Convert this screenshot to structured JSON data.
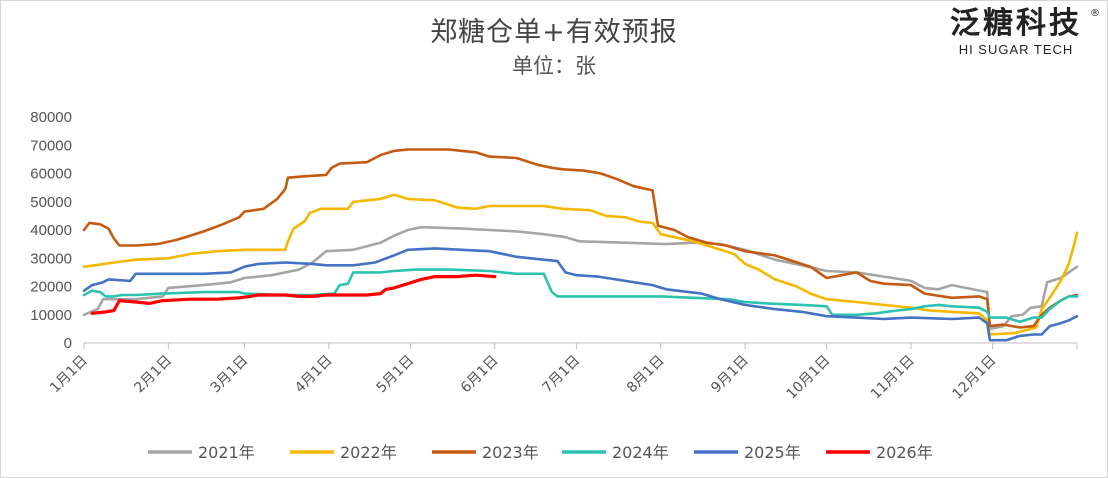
{
  "chart_data": {
    "type": "line",
    "title": "郑糖仓单+有效预报",
    "subtitle": "单位：张",
    "ylim": [
      0,
      80000
    ],
    "yticks": [
      0,
      10000,
      20000,
      30000,
      40000,
      50000,
      60000,
      70000,
      80000
    ],
    "xlim": [
      1,
      366
    ],
    "xticks": [
      {
        "label": "1月1日",
        "day": 1
      },
      {
        "label": "2月1日",
        "day": 32
      },
      {
        "label": "3月1日",
        "day": 60
      },
      {
        "label": "4月1日",
        "day": 91
      },
      {
        "label": "5月1日",
        "day": 121
      },
      {
        "label": "6月1日",
        "day": 152
      },
      {
        "label": "7月1日",
        "day": 182
      },
      {
        "label": "8月1日",
        "day": 213
      },
      {
        "label": "9月1日",
        "day": 244
      },
      {
        "label": "10月1日",
        "day": 274
      },
      {
        "label": "11月1日",
        "day": 305
      },
      {
        "label": "12月1日",
        "day": 335
      }
    ],
    "legend_position": "bottom",
    "series": [
      {
        "name": "2021年",
        "color": "#A5A5A5",
        "points": [
          [
            1,
            10000
          ],
          [
            6,
            12000
          ],
          [
            8,
            15500
          ],
          [
            20,
            15500
          ],
          [
            30,
            16500
          ],
          [
            32,
            19500
          ],
          [
            45,
            20500
          ],
          [
            55,
            21500
          ],
          [
            60,
            23000
          ],
          [
            70,
            24000
          ],
          [
            80,
            26000
          ],
          [
            85,
            28500
          ],
          [
            90,
            32500
          ],
          [
            100,
            33000
          ],
          [
            110,
            35500
          ],
          [
            115,
            38000
          ],
          [
            120,
            40000
          ],
          [
            125,
            41000
          ],
          [
            140,
            40500
          ],
          [
            150,
            40000
          ],
          [
            160,
            39500
          ],
          [
            170,
            38500
          ],
          [
            178,
            37500
          ],
          [
            183,
            36000
          ],
          [
            200,
            35500
          ],
          [
            215,
            35000
          ],
          [
            225,
            35500
          ],
          [
            235,
            35000
          ],
          [
            244,
            33000
          ],
          [
            255,
            29500
          ],
          [
            265,
            27500
          ],
          [
            274,
            25500
          ],
          [
            285,
            25000
          ],
          [
            295,
            23500
          ],
          [
            305,
            22000
          ],
          [
            310,
            19500
          ],
          [
            315,
            19000
          ],
          [
            320,
            20500
          ],
          [
            325,
            19500
          ],
          [
            333,
            18000
          ],
          [
            334,
            5000
          ],
          [
            339,
            6000
          ],
          [
            342,
            9500
          ],
          [
            346,
            10000
          ],
          [
            349,
            12500
          ],
          [
            353,
            13000
          ],
          [
            355,
            21500
          ],
          [
            360,
            23000
          ],
          [
            366,
            27000
          ]
        ]
      },
      {
        "name": "2022年",
        "color": "#F5B800",
        "points": [
          [
            1,
            27000
          ],
          [
            5,
            27500
          ],
          [
            12,
            28500
          ],
          [
            20,
            29500
          ],
          [
            32,
            30000
          ],
          [
            40,
            31500
          ],
          [
            50,
            32500
          ],
          [
            60,
            33000
          ],
          [
            75,
            33000
          ],
          [
            76,
            36000
          ],
          [
            78,
            40500
          ],
          [
            82,
            43000
          ],
          [
            84,
            46000
          ],
          [
            88,
            47500
          ],
          [
            98,
            47500
          ],
          [
            100,
            50000
          ],
          [
            110,
            51000
          ],
          [
            115,
            52500
          ],
          [
            120,
            51000
          ],
          [
            130,
            50500
          ],
          [
            138,
            48000
          ],
          [
            145,
            47500
          ],
          [
            150,
            48500
          ],
          [
            170,
            48500
          ],
          [
            177,
            47500
          ],
          [
            187,
            47000
          ],
          [
            193,
            45000
          ],
          [
            200,
            44500
          ],
          [
            205,
            43000
          ],
          [
            210,
            42500
          ],
          [
            213,
            38500
          ],
          [
            225,
            36000
          ],
          [
            235,
            33000
          ],
          [
            240,
            31500
          ],
          [
            244,
            28000
          ],
          [
            249,
            26000
          ],
          [
            255,
            22500
          ],
          [
            263,
            20000
          ],
          [
            268,
            17500
          ],
          [
            274,
            15500
          ],
          [
            285,
            14500
          ],
          [
            300,
            13000
          ],
          [
            305,
            12500
          ],
          [
            312,
            11500
          ],
          [
            320,
            11000
          ],
          [
            330,
            10500
          ],
          [
            333,
            8000
          ],
          [
            334,
            3000
          ],
          [
            343,
            3500
          ],
          [
            347,
            4500
          ],
          [
            351,
            5500
          ],
          [
            353,
            12000
          ],
          [
            356,
            16000
          ],
          [
            360,
            22000
          ],
          [
            363,
            28000
          ],
          [
            365,
            35000
          ],
          [
            366,
            39000
          ]
        ]
      },
      {
        "name": "2023年",
        "color": "#C55A11",
        "points": [
          [
            1,
            40000
          ],
          [
            3,
            42500
          ],
          [
            7,
            42000
          ],
          [
            10,
            40500
          ],
          [
            12,
            37000
          ],
          [
            14,
            34500
          ],
          [
            20,
            34500
          ],
          [
            28,
            35000
          ],
          [
            35,
            36500
          ],
          [
            40,
            38000
          ],
          [
            45,
            39500
          ],
          [
            52,
            42000
          ],
          [
            58,
            44500
          ],
          [
            60,
            46500
          ],
          [
            67,
            47500
          ],
          [
            72,
            51000
          ],
          [
            75,
            54500
          ],
          [
            76,
            58500
          ],
          [
            82,
            59000
          ],
          [
            90,
            59500
          ],
          [
            92,
            62000
          ],
          [
            95,
            63500
          ],
          [
            105,
            64000
          ],
          [
            110,
            66500
          ],
          [
            115,
            68000
          ],
          [
            120,
            68500
          ],
          [
            135,
            68500
          ],
          [
            140,
            68000
          ],
          [
            145,
            67500
          ],
          [
            150,
            66000
          ],
          [
            160,
            65500
          ],
          [
            168,
            63000
          ],
          [
            173,
            62000
          ],
          [
            177,
            61500
          ],
          [
            185,
            61000
          ],
          [
            191,
            60000
          ],
          [
            197,
            58000
          ],
          [
            203,
            55500
          ],
          [
            210,
            54000
          ],
          [
            212,
            41500
          ],
          [
            218,
            40000
          ],
          [
            223,
            37500
          ],
          [
            230,
            35500
          ],
          [
            237,
            34500
          ],
          [
            244,
            32500
          ],
          [
            255,
            31000
          ],
          [
            260,
            29500
          ],
          [
            268,
            27000
          ],
          [
            274,
            23000
          ],
          [
            285,
            25000
          ],
          [
            290,
            22000
          ],
          [
            295,
            21000
          ],
          [
            305,
            20500
          ],
          [
            310,
            17500
          ],
          [
            320,
            16000
          ],
          [
            330,
            16500
          ],
          [
            333,
            15500
          ],
          [
            334,
            6000
          ],
          [
            339,
            6500
          ],
          [
            345,
            5500
          ],
          [
            350,
            6000
          ],
          [
            353,
            10000
          ],
          [
            356,
            12500
          ],
          [
            360,
            15000
          ],
          [
            363,
            16500
          ],
          [
            366,
            17000
          ]
        ]
      },
      {
        "name": "2024年",
        "color": "#2CC2B0",
        "points": [
          [
            1,
            17000
          ],
          [
            4,
            18500
          ],
          [
            7,
            18000
          ],
          [
            9,
            16500
          ],
          [
            12,
            16500
          ],
          [
            15,
            17000
          ],
          [
            20,
            17000
          ],
          [
            30,
            17500
          ],
          [
            45,
            18000
          ],
          [
            58,
            18000
          ],
          [
            60,
            17500
          ],
          [
            75,
            17000
          ],
          [
            85,
            17000
          ],
          [
            93,
            17500
          ],
          [
            95,
            20500
          ],
          [
            98,
            21000
          ],
          [
            100,
            25000
          ],
          [
            110,
            25000
          ],
          [
            115,
            25500
          ],
          [
            123,
            26000
          ],
          [
            135,
            26000
          ],
          [
            150,
            25500
          ],
          [
            160,
            24500
          ],
          [
            170,
            24500
          ],
          [
            173,
            18000
          ],
          [
            175,
            16500
          ],
          [
            182,
            16500
          ],
          [
            193,
            16500
          ],
          [
            213,
            16500
          ],
          [
            225,
            16000
          ],
          [
            238,
            15500
          ],
          [
            244,
            14500
          ],
          [
            252,
            14000
          ],
          [
            265,
            13500
          ],
          [
            274,
            13000
          ],
          [
            276,
            10000
          ],
          [
            285,
            10000
          ],
          [
            292,
            10500
          ],
          [
            300,
            11500
          ],
          [
            305,
            12000
          ],
          [
            310,
            13000
          ],
          [
            315,
            13500
          ],
          [
            320,
            13000
          ],
          [
            330,
            12500
          ],
          [
            333,
            11000
          ],
          [
            334,
            9000
          ],
          [
            340,
            9000
          ],
          [
            345,
            7500
          ],
          [
            350,
            9000
          ],
          [
            353,
            9000
          ],
          [
            356,
            12000
          ],
          [
            360,
            15000
          ],
          [
            363,
            16500
          ],
          [
            366,
            16500
          ]
        ]
      },
      {
        "name": "2025年",
        "color": "#4472C4",
        "points": [
          [
            1,
            18500
          ],
          [
            4,
            20500
          ],
          [
            8,
            21500
          ],
          [
            10,
            22500
          ],
          [
            18,
            22000
          ],
          [
            20,
            24500
          ],
          [
            30,
            24500
          ],
          [
            45,
            24500
          ],
          [
            55,
            25000
          ],
          [
            60,
            27000
          ],
          [
            65,
            28000
          ],
          [
            75,
            28500
          ],
          [
            85,
            28000
          ],
          [
            90,
            27500
          ],
          [
            100,
            27500
          ],
          [
            108,
            28500
          ],
          [
            115,
            31000
          ],
          [
            120,
            33000
          ],
          [
            130,
            33500
          ],
          [
            140,
            33000
          ],
          [
            150,
            32500
          ],
          [
            160,
            30500
          ],
          [
            170,
            29500
          ],
          [
            175,
            29000
          ],
          [
            178,
            25000
          ],
          [
            182,
            24000
          ],
          [
            190,
            23500
          ],
          [
            200,
            22000
          ],
          [
            210,
            20500
          ],
          [
            215,
            19000
          ],
          [
            228,
            17500
          ],
          [
            235,
            15500
          ],
          [
            244,
            13500
          ],
          [
            255,
            12000
          ],
          [
            265,
            11000
          ],
          [
            274,
            9500
          ],
          [
            285,
            9000
          ],
          [
            295,
            8500
          ],
          [
            305,
            9000
          ],
          [
            320,
            8500
          ],
          [
            330,
            9000
          ],
          [
            333,
            7000
          ],
          [
            334,
            1000
          ],
          [
            340,
            1000
          ],
          [
            345,
            2500
          ],
          [
            350,
            3000
          ],
          [
            353,
            3000
          ],
          [
            356,
            6000
          ],
          [
            360,
            7000
          ],
          [
            363,
            8000
          ],
          [
            366,
            9500
          ]
        ]
      },
      {
        "name": "2026年",
        "color": "#FF0000",
        "points": [
          [
            4,
            10500
          ],
          [
            9,
            11000
          ],
          [
            12,
            11500
          ],
          [
            14,
            15000
          ],
          [
            20,
            14500
          ],
          [
            25,
            14000
          ],
          [
            30,
            15000
          ],
          [
            40,
            15500
          ],
          [
            50,
            15500
          ],
          [
            58,
            16000
          ],
          [
            62,
            16500
          ],
          [
            65,
            17000
          ],
          [
            75,
            17000
          ],
          [
            80,
            16500
          ],
          [
            85,
            16500
          ],
          [
            90,
            17000
          ],
          [
            105,
            17000
          ],
          [
            110,
            17500
          ],
          [
            112,
            19000
          ],
          [
            115,
            19500
          ],
          [
            120,
            21000
          ],
          [
            125,
            22500
          ],
          [
            130,
            23500
          ],
          [
            138,
            23500
          ],
          [
            145,
            24000
          ],
          [
            152,
            23500
          ]
        ]
      }
    ]
  }
}
